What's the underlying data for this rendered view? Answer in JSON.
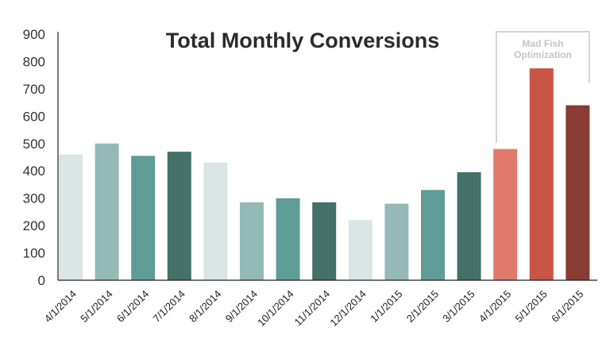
{
  "chart_data": {
    "type": "bar",
    "title": "Total Monthly Conversions",
    "xlabel": "",
    "ylabel": "",
    "ylim": [
      0,
      900
    ],
    "yticks": [
      "0",
      "100",
      "200",
      "300",
      "400",
      "500",
      "600",
      "700",
      "800",
      "900"
    ],
    "categories": [
      "4/1/2014",
      "5/1/2014",
      "6/1/2014",
      "7/1/2014",
      "8/1/2014",
      "9/1/2014",
      "10/1/2014",
      "11/1/2014",
      "12/1/2014",
      "1/1/2015",
      "2/1/2015",
      "3/1/2015",
      "4/1/2015",
      "5/1/2015",
      "6/1/2015"
    ],
    "values": [
      460,
      500,
      455,
      470,
      430,
      285,
      300,
      285,
      220,
      280,
      330,
      395,
      480,
      775,
      640
    ],
    "bar_colors": [
      "#dae6e6",
      "#93bab6",
      "#5f9c96",
      "#46706a",
      "#dae6e6",
      "#93bab6",
      "#5f9c96",
      "#46706a",
      "#dae6e6",
      "#93bab6",
      "#5f9c96",
      "#46706a",
      "#e07a6c",
      "#c95546",
      "#8a3b32"
    ],
    "annotation": {
      "line1": "Mad Fish",
      "line2": "Optimization"
    },
    "grid": false,
    "legend": "none"
  }
}
